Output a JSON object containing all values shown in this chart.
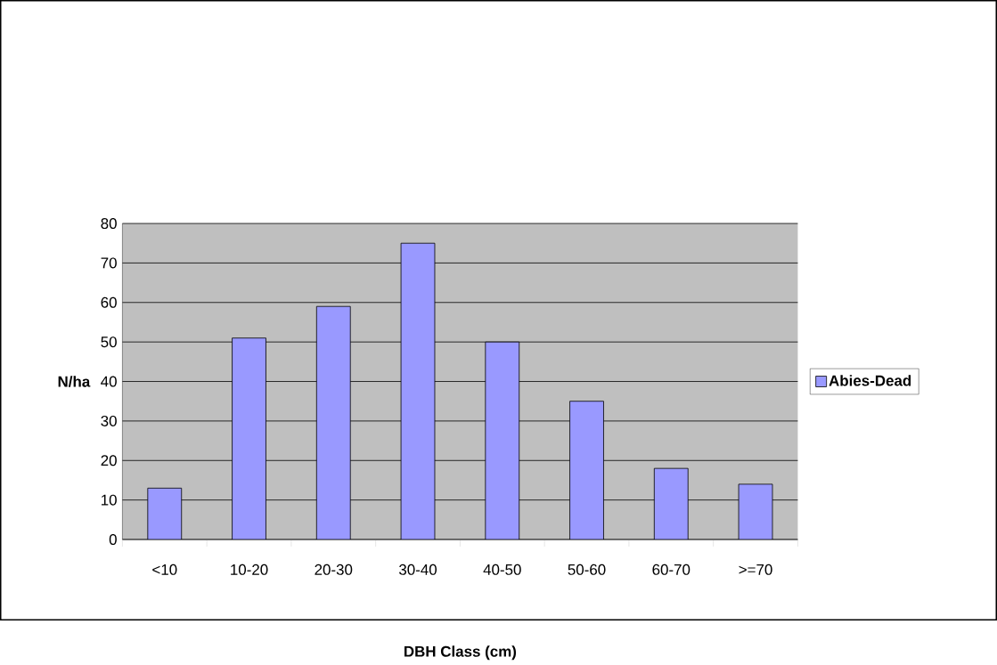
{
  "chart_data": {
    "type": "bar",
    "xlabel": "DBH Class (cm)",
    "ylabel": "N/ha",
    "categories": [
      "<10",
      "10-20",
      "20-30",
      "30-40",
      "40-50",
      "50-60",
      "60-70",
      ">=70"
    ],
    "series": [
      {
        "name": "Abies-Dead",
        "color": "#9999ff",
        "values": [
          13,
          51,
          59,
          75,
          50,
          35,
          18,
          14
        ]
      }
    ],
    "ylim": [
      0,
      80
    ],
    "yticks": [
      0,
      10,
      20,
      30,
      40,
      50,
      60,
      70,
      80
    ],
    "grid": "y",
    "legend": "right"
  }
}
